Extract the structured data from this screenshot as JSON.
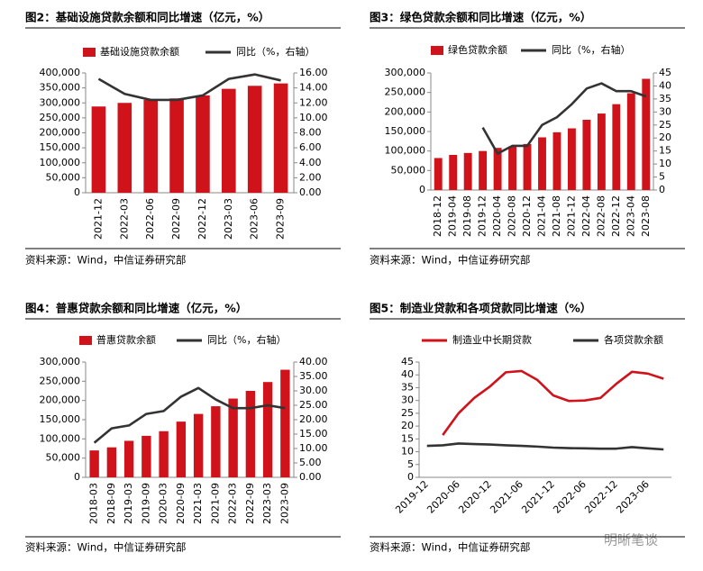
{
  "chart_data": [
    {
      "type": "bar",
      "title": "图2：基础设施贷款余额和同比增速（亿元，%）",
      "source": "资料来源：Wind，中信证券研究部",
      "categories": [
        "2021-12",
        "2022-03",
        "2022-06",
        "2022-09",
        "2022-12",
        "2023-03",
        "2023-06",
        "2023-09"
      ],
      "series": [
        {
          "name": "基础设施贷款余额",
          "type": "bar",
          "color": "#d0121b",
          "values": [
            288000,
            300000,
            310000,
            315000,
            325000,
            347000,
            357000,
            365000
          ]
        },
        {
          "name": "同比（%，右轴）",
          "type": "line",
          "axis": "y2",
          "color": "#333333",
          "values": [
            15.2,
            13.2,
            12.4,
            12.4,
            13.0,
            15.2,
            15.8,
            15.0
          ]
        }
      ],
      "ylim": [
        0,
        400000
      ],
      "yticks": [
        0,
        {
          "value": 50000,
          "label": "50,000"
        },
        {
          "value": 100000,
          "label": "100,000"
        },
        {
          "value": 150000,
          "label": "150,000"
        },
        {
          "value": 200000,
          "label": "200,000"
        },
        {
          "value": 250000,
          "label": "250,000"
        },
        {
          "value": 300000,
          "label": "300,000"
        },
        {
          "value": 350000,
          "label": "350,000"
        },
        {
          "value": 400000,
          "label": "400,000"
        }
      ],
      "y2lim": [
        0,
        16
      ],
      "y2ticks": [
        {
          "value": 0,
          "label": "0.00"
        },
        {
          "value": 2,
          "label": "2.00"
        },
        {
          "value": 4,
          "label": "4.00"
        },
        {
          "value": 6,
          "label": "6.00"
        },
        {
          "value": 8,
          "label": "8.00"
        },
        {
          "value": 10,
          "label": "10.00"
        },
        {
          "value": 12,
          "label": "12.00"
        },
        {
          "value": 14,
          "label": "14.00"
        },
        {
          "value": 16,
          "label": "16.00"
        }
      ]
    },
    {
      "type": "bar",
      "title": "图3：绿色贷款余额和同比增速（亿元，%）",
      "source": "资料来源：Wind，中信证券研究部",
      "categories": [
        "2018-12",
        "2019-04",
        "2019-08",
        "2019-12",
        "2020-04",
        "2020-08",
        "2020-12",
        "2021-04",
        "2021-08",
        "2021-12",
        "2022-04",
        "2022-08",
        "2022-12",
        "2023-04",
        "2023-08"
      ],
      "series": [
        {
          "name": "绿色贷款余额",
          "type": "bar",
          "color": "#d0121b",
          "values": [
            82000,
            90000,
            95000,
            100000,
            108000,
            112000,
            118000,
            135000,
            148000,
            158000,
            180000,
            196000,
            220000,
            248000,
            285000
          ]
        },
        {
          "name": "同比（%，右轴）",
          "type": "line",
          "axis": "y2",
          "color": "#333333",
          "values": [
            null,
            null,
            null,
            24,
            14,
            17,
            17,
            25,
            28,
            33,
            39,
            41,
            38,
            38,
            36
          ]
        }
      ],
      "ylim": [
        0,
        300000
      ],
      "yticks": [
        0,
        {
          "value": 50000,
          "label": "50,000"
        },
        {
          "value": 100000,
          "label": "100,000"
        },
        {
          "value": 150000,
          "label": "150,000"
        },
        {
          "value": 200000,
          "label": "200,000"
        },
        {
          "value": 250000,
          "label": "250,000"
        },
        {
          "value": 300000,
          "label": "300,000"
        }
      ],
      "y2lim": [
        0,
        45
      ],
      "y2ticks": [
        0,
        5,
        10,
        15,
        20,
        25,
        30,
        35,
        40,
        45
      ]
    },
    {
      "type": "bar",
      "title": "图4：普惠贷款余额和同比增速（亿元，%）",
      "source": "资料来源：Wind，中信证券研究部",
      "categories": [
        "2018-03",
        "2018-09",
        "2019-03",
        "2019-09",
        "2020-03",
        "2020-09",
        "2021-03",
        "2021-09",
        "2022-03",
        "2022-09",
        "2023-03",
        "2023-09"
      ],
      "series": [
        {
          "name": "普惠贷款余额",
          "type": "bar",
          "color": "#d0121b",
          "values": [
            70000,
            78000,
            95000,
            108000,
            120000,
            145000,
            165000,
            185000,
            205000,
            225000,
            248000,
            280000
          ]
        },
        {
          "name": "同比（%，右轴）",
          "type": "line",
          "axis": "y2",
          "color": "#333333",
          "values": [
            12,
            17,
            18,
            22,
            23,
            28,
            31,
            27,
            24,
            24,
            25,
            24
          ]
        }
      ],
      "ylim": [
        0,
        300000
      ],
      "yticks": [
        0,
        {
          "value": 50000,
          "label": "50,000"
        },
        {
          "value": 100000,
          "label": "100,000"
        },
        {
          "value": 150000,
          "label": "150,000"
        },
        {
          "value": 200000,
          "label": "200,000"
        },
        {
          "value": 250000,
          "label": "250,000"
        },
        {
          "value": 300000,
          "label": "300,000"
        }
      ],
      "y2lim": [
        0,
        40
      ],
      "y2ticks": [
        {
          "value": 0,
          "label": "0.00"
        },
        {
          "value": 5,
          "label": "5.00"
        },
        {
          "value": 10,
          "label": "10.00"
        },
        {
          "value": 15,
          "label": "15.00"
        },
        {
          "value": 20,
          "label": "20.00"
        },
        {
          "value": 25,
          "label": "25.00"
        },
        {
          "value": 30,
          "label": "30.00"
        },
        {
          "value": 35,
          "label": "35.00"
        },
        {
          "value": 40,
          "label": "40.00"
        }
      ]
    },
    {
      "type": "line",
      "title": "图5：制造业贷款和各项贷款同比增速（%）",
      "source": "资料来源：Wind，中信证券研究部",
      "categories": [
        "2019-12",
        null,
        "2020-06",
        null,
        "2020-12",
        null,
        "2021-06",
        null,
        "2021-12",
        null,
        "2022-06",
        null,
        "2022-12",
        null,
        "2023-06",
        null
      ],
      "series": [
        {
          "name": "制造业中长期贷款",
          "type": "line",
          "color": "#d0121b",
          "values": [
            null,
            16.5,
            25,
            31,
            35.5,
            41,
            41.5,
            38,
            32,
            29.8,
            30,
            31,
            36.5,
            41.2,
            40.5,
            38.5
          ]
        },
        {
          "name": "各项贷款余额",
          "type": "line",
          "color": "#333333",
          "values": [
            12.3,
            12.5,
            13.2,
            13,
            12.8,
            12.5,
            12.3,
            12,
            11.6,
            11.4,
            11.3,
            11.2,
            11.2,
            11.8,
            11.3,
            10.9
          ]
        }
      ],
      "ylim": [
        0,
        45
      ],
      "yticks": [
        0,
        5,
        10,
        15,
        20,
        25,
        30,
        35,
        40,
        45
      ]
    }
  ],
  "watermark": "明晰笔谈"
}
